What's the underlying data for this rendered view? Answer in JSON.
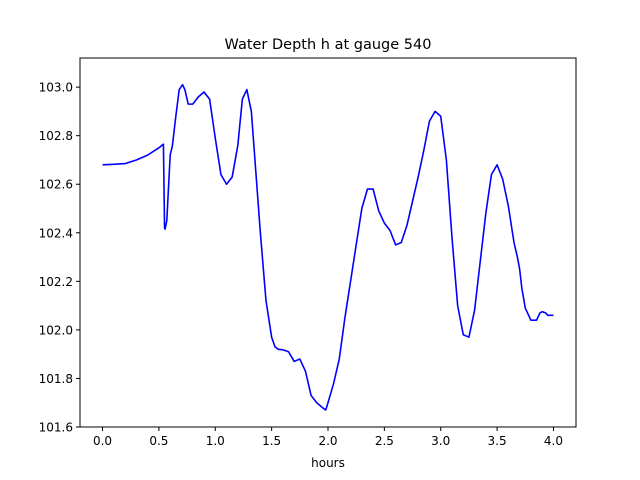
{
  "chart_data": {
    "type": "line",
    "title": "Water Depth h at gauge 540",
    "xlabel": "hours",
    "ylabel": "",
    "xlim": [
      -0.2,
      4.2
    ],
    "ylim": [
      101.6,
      103.12
    ],
    "xticks": [
      0.0,
      0.5,
      1.0,
      1.5,
      2.0,
      2.5,
      3.0,
      3.5,
      4.0
    ],
    "xtick_labels": [
      "0.0",
      "0.5",
      "1.0",
      "1.5",
      "2.0",
      "2.5",
      "3.0",
      "3.5",
      "4.0"
    ],
    "yticks": [
      101.6,
      101.8,
      102.0,
      102.2,
      102.4,
      102.6,
      102.8,
      103.0
    ],
    "ytick_labels": [
      "101.6",
      "101.8",
      "102.0",
      "102.2",
      "102.4",
      "102.6",
      "102.8",
      "103.0"
    ],
    "grid": false,
    "series": [
      {
        "name": "",
        "color": "#0000ff",
        "x": [
          0.0,
          0.1,
          0.2,
          0.3,
          0.4,
          0.45,
          0.5,
          0.54,
          0.55,
          0.555,
          0.57,
          0.6,
          0.62,
          0.65,
          0.68,
          0.71,
          0.73,
          0.76,
          0.8,
          0.85,
          0.9,
          0.95,
          1.0,
          1.05,
          1.1,
          1.15,
          1.2,
          1.24,
          1.28,
          1.32,
          1.36,
          1.4,
          1.45,
          1.5,
          1.53,
          1.56,
          1.6,
          1.65,
          1.7,
          1.75,
          1.8,
          1.85,
          1.9,
          1.95,
          1.98,
          2.0,
          2.05,
          2.1,
          2.15,
          2.2,
          2.25,
          2.3,
          2.35,
          2.4,
          2.45,
          2.5,
          2.55,
          2.6,
          2.65,
          2.7,
          2.75,
          2.8,
          2.85,
          2.9,
          2.95,
          3.0,
          3.05,
          3.1,
          3.15,
          3.2,
          3.25,
          3.3,
          3.35,
          3.4,
          3.45,
          3.5,
          3.55,
          3.6,
          3.65,
          3.68,
          3.7,
          3.72,
          3.75,
          3.8,
          3.85,
          3.88,
          3.9,
          3.93,
          3.95,
          4.0
        ],
        "values": [
          102.68,
          102.682,
          102.685,
          102.7,
          102.72,
          102.735,
          102.75,
          102.765,
          102.42,
          102.415,
          102.45,
          102.72,
          102.76,
          102.88,
          102.99,
          103.01,
          102.99,
          102.93,
          102.93,
          102.96,
          102.98,
          102.95,
          102.79,
          102.64,
          102.6,
          102.63,
          102.76,
          102.95,
          102.99,
          102.9,
          102.65,
          102.4,
          102.12,
          101.97,
          101.93,
          101.92,
          101.918,
          101.91,
          101.87,
          101.88,
          101.83,
          101.73,
          101.7,
          101.68,
          101.67,
          101.7,
          101.78,
          101.88,
          102.05,
          102.2,
          102.35,
          102.5,
          102.58,
          102.58,
          102.49,
          102.44,
          102.41,
          102.35,
          102.36,
          102.43,
          102.53,
          102.63,
          102.74,
          102.86,
          102.9,
          102.88,
          102.7,
          102.38,
          102.1,
          101.98,
          101.97,
          102.08,
          102.28,
          102.48,
          102.64,
          102.68,
          102.62,
          102.51,
          102.36,
          102.3,
          102.25,
          102.17,
          102.09,
          102.04,
          102.04,
          102.07,
          102.075,
          102.07,
          102.06,
          102.06
        ]
      }
    ]
  }
}
